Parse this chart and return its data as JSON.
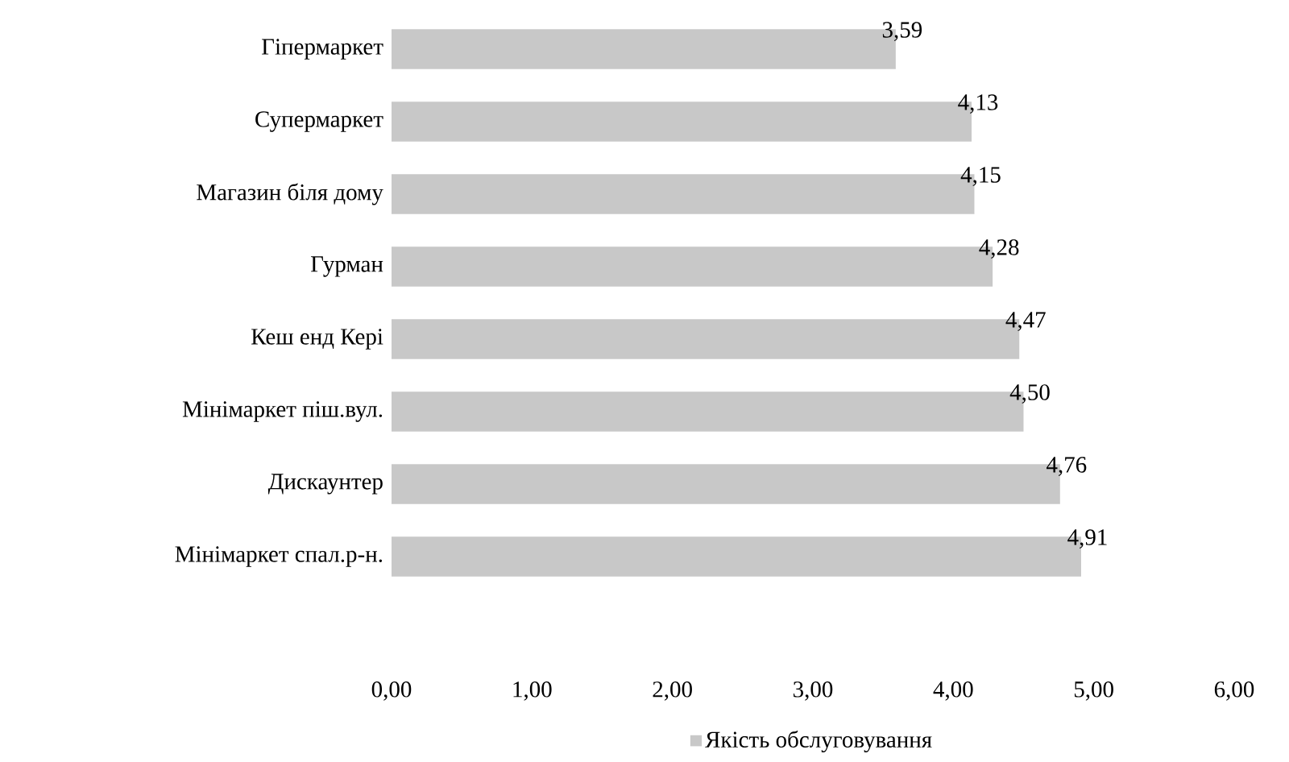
{
  "chart_data": {
    "type": "bar",
    "orientation": "horizontal",
    "categories": [
      "Гіпермаркет",
      "Супермаркет",
      "Магазин біля дому",
      "Гурман",
      "Кеш енд Кері",
      "Мінімаркет піш.вул.",
      "Дискаунтер",
      "Мінімаркет спал.р-н."
    ],
    "series": [
      {
        "name": "Якість обслуговування",
        "color": "#c8c8c8",
        "values": [
          3.59,
          4.13,
          4.15,
          4.28,
          4.47,
          4.5,
          4.76,
          4.91
        ],
        "value_labels": [
          "3,59",
          "4,13",
          "4,15",
          "4,28",
          "4,47",
          "4,50",
          "4,76",
          "4,91"
        ]
      }
    ],
    "xlim": [
      0,
      6
    ],
    "xticks": [
      {
        "value": 0,
        "label": "0,00"
      },
      {
        "value": 1,
        "label": "1,00"
      },
      {
        "value": 2,
        "label": "2,00"
      },
      {
        "value": 3,
        "label": "3,00"
      },
      {
        "value": 4,
        "label": "4,00"
      },
      {
        "value": 5,
        "label": "5,00"
      },
      {
        "value": 6,
        "label": "6,00"
      }
    ],
    "legend": "bottom"
  }
}
